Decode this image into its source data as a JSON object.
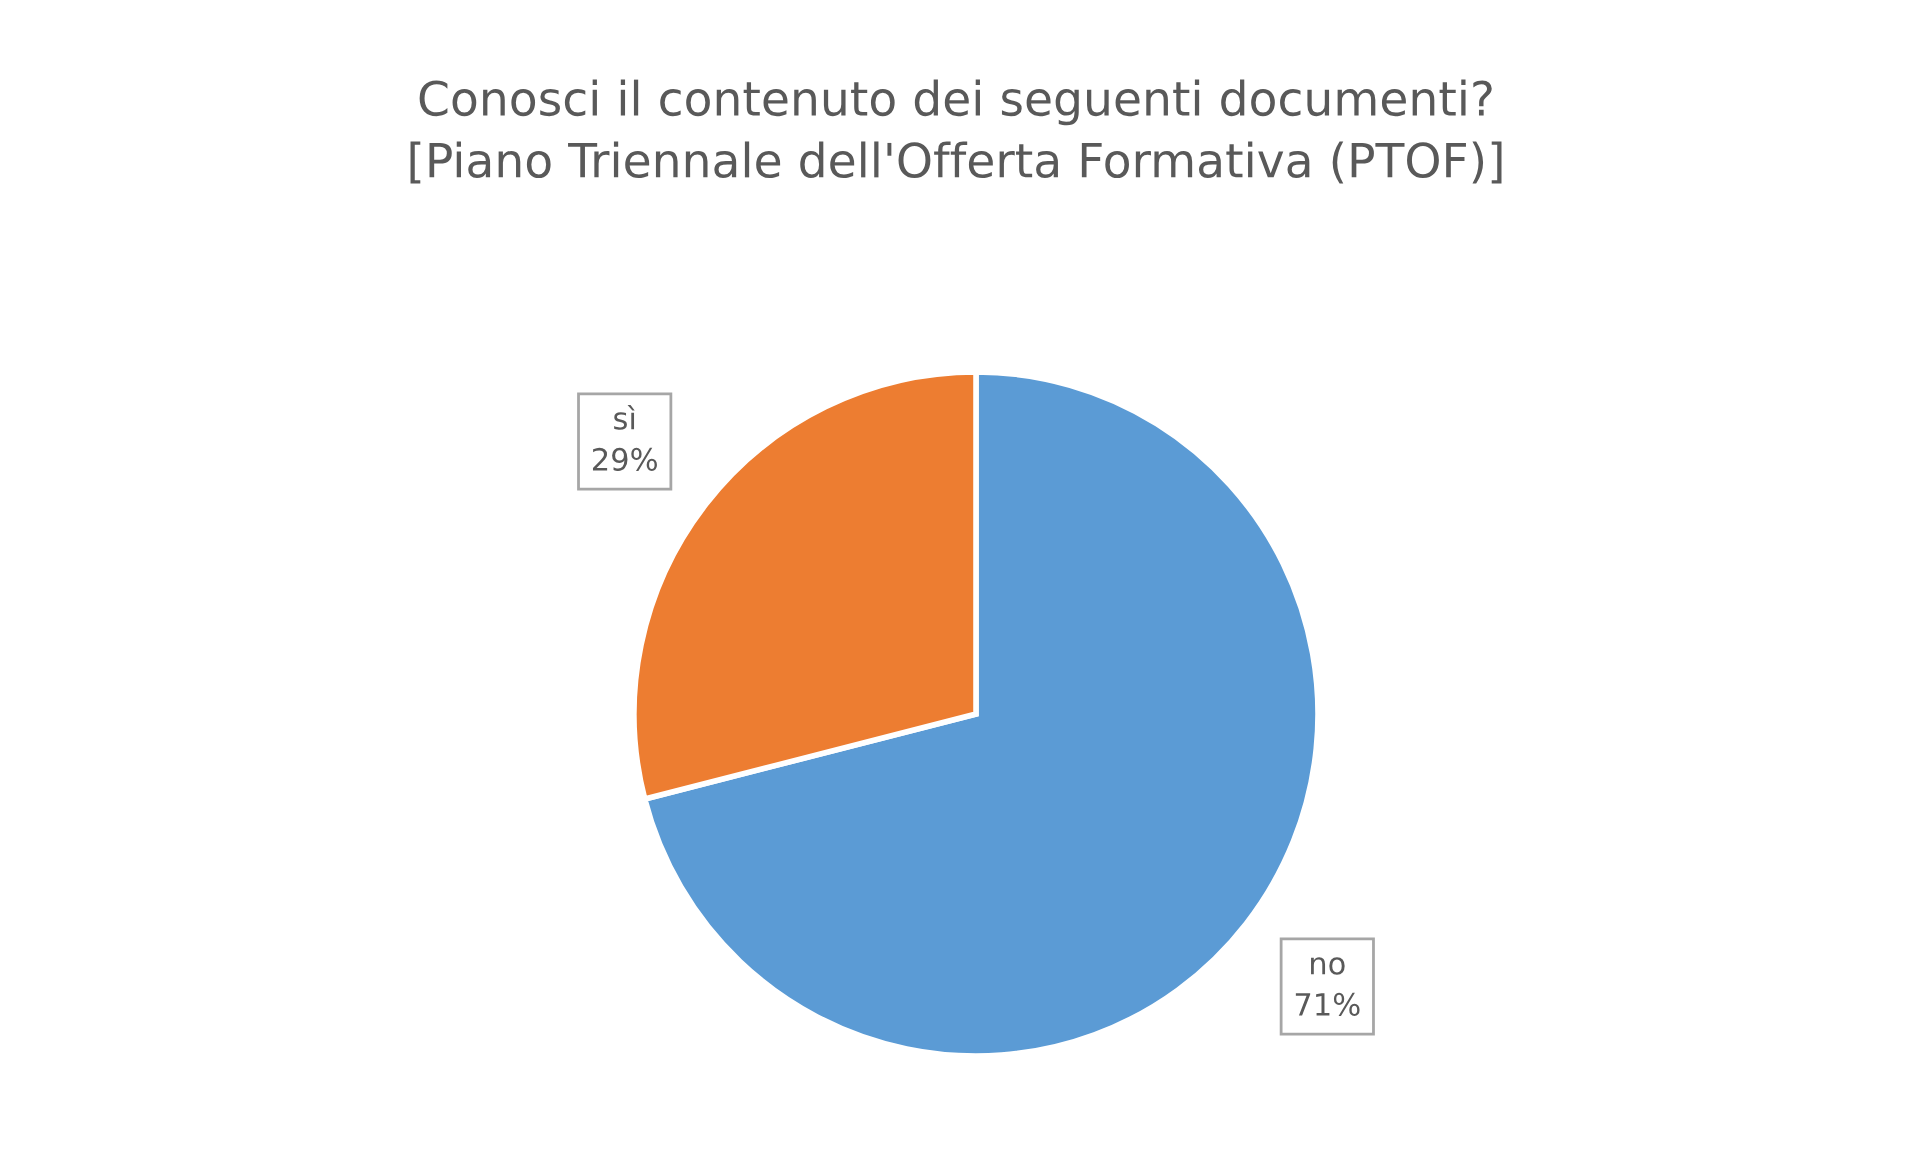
{
  "chart_data": {
    "type": "pie",
    "title": "Conosci il contenuto dei seguenti documenti?\n[Piano Triennale dell'Offerta Formativa (PTOF)]",
    "categories": [
      "no",
      "sì"
    ],
    "values": [
      71,
      29
    ],
    "value_labels": [
      "71%",
      "29%"
    ],
    "colors": [
      "#5b9bd5",
      "#ed7d31"
    ],
    "legend": false
  }
}
